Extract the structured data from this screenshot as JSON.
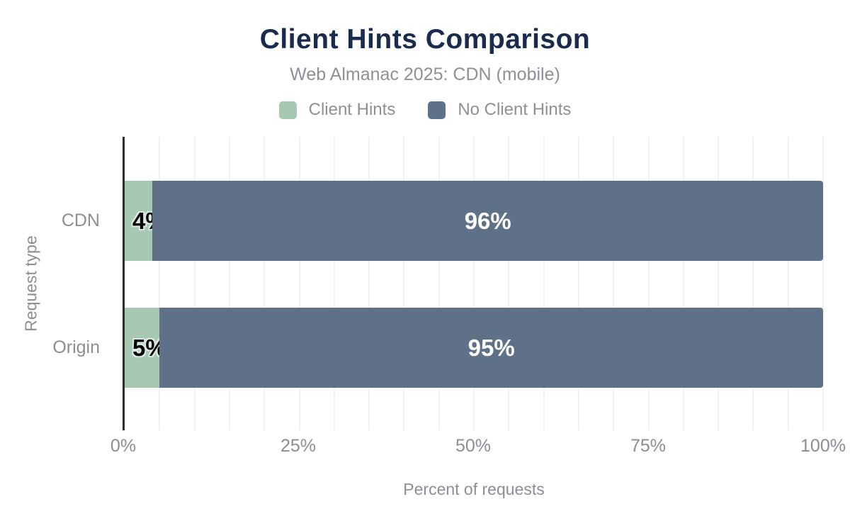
{
  "chart_data": {
    "type": "bar",
    "orientation": "horizontal",
    "stacked": true,
    "title": "Client Hints Comparison",
    "subtitle": "Web Almanac 2025: CDN (mobile)",
    "categories": [
      "CDN",
      "Origin"
    ],
    "series": [
      {
        "name": "Client Hints",
        "color": "#a7c8b3",
        "values": [
          4,
          5
        ],
        "labels": [
          "4%",
          "5%"
        ],
        "label_color": "#000000"
      },
      {
        "name": "No Client Hints",
        "color": "#5e7189",
        "values": [
          96,
          95
        ],
        "labels": [
          "96%",
          "95%"
        ],
        "label_color": "#ffffff"
      }
    ],
    "xlabel": "Percent of requests",
    "ylabel": "Request type",
    "x_ticks": [
      "0%",
      "25%",
      "50%",
      "75%",
      "100%"
    ],
    "xlim": [
      0,
      100
    ],
    "gridline_step_percent": 5,
    "grid": "vertical",
    "legend_position": "top"
  },
  "colors": {
    "background": "#ffffff",
    "title_text": "#1a2b4d",
    "muted_text": "#8b8e95",
    "axis_line": "#2d2d2d",
    "gridline": "#f2f2f2",
    "small_label_halo": "#d8e8de"
  }
}
